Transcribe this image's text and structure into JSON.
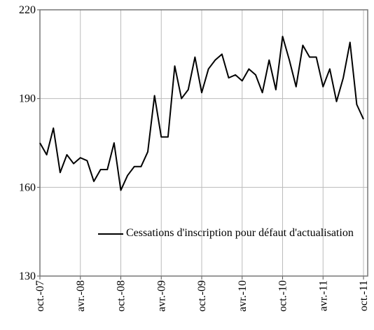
{
  "chart_data": {
    "type": "line",
    "categories": [
      "oct.-07",
      null,
      null,
      null,
      null,
      null,
      "avr.-08",
      null,
      null,
      null,
      null,
      null,
      "oct.-08",
      null,
      null,
      null,
      null,
      null,
      "avr.-09",
      null,
      null,
      null,
      null,
      null,
      "oct.-09",
      null,
      null,
      null,
      null,
      null,
      "avr.-10",
      null,
      null,
      null,
      null,
      null,
      "oct.-10",
      null,
      null,
      null,
      null,
      null,
      "avr.-11",
      null,
      null,
      null,
      null,
      null,
      "oct.-11"
    ],
    "series": [
      {
        "name": "Cessations d'inscription pour défaut d'actualisation",
        "color": "#000000",
        "values": [
          175,
          171,
          180,
          165,
          171,
          168,
          170,
          169,
          162,
          166,
          166,
          175,
          159,
          164,
          167,
          167,
          172,
          191,
          177,
          177,
          201,
          190,
          193,
          204,
          192,
          200,
          203,
          205,
          197,
          198,
          196,
          200,
          198,
          192,
          203,
          193,
          211,
          203,
          194,
          208,
          204,
          204,
          194,
          200,
          189,
          197,
          209,
          188,
          183
        ]
      }
    ],
    "ylim": [
      130,
      220
    ],
    "yticks": [
      130,
      160,
      190,
      220
    ],
    "grid": true
  }
}
